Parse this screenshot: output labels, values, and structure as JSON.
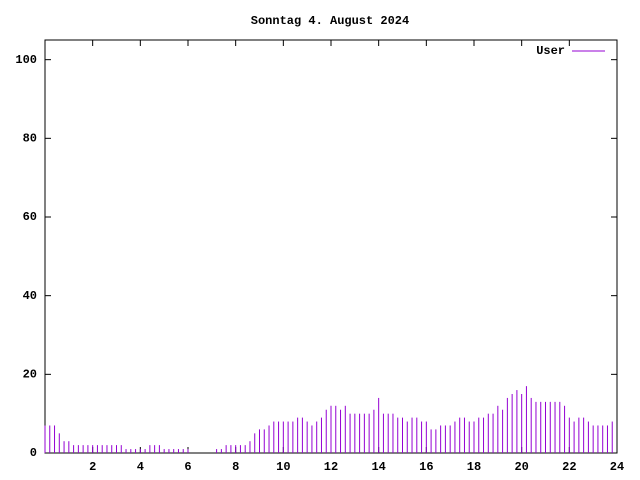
{
  "chart_data": {
    "type": "impulse",
    "title": "Sonntag 4. August 2024",
    "x": [
      0,
      0.2,
      0.4,
      0.6,
      0.8,
      1,
      1.2,
      1.4,
      1.6,
      1.8,
      2,
      2.2,
      2.4,
      2.6,
      2.8,
      3,
      3.2,
      3.4,
      3.6,
      3.8,
      4,
      4.2,
      4.4,
      4.6,
      4.8,
      5,
      5.2,
      5.4,
      5.6,
      5.8,
      6,
      6.2,
      6.4,
      6.6,
      6.8,
      7,
      7.2,
      7.4,
      7.6,
      7.8,
      8,
      8.2,
      8.4,
      8.6,
      8.8,
      9,
      9.2,
      9.4,
      9.6,
      9.8,
      10,
      10.2,
      10.4,
      10.6,
      10.8,
      11,
      11.2,
      11.4,
      11.6,
      11.8,
      12,
      12.2,
      12.4,
      12.6,
      12.8,
      13,
      13.2,
      13.4,
      13.6,
      13.8,
      14,
      14.2,
      14.4,
      14.6,
      14.8,
      15,
      15.2,
      15.4,
      15.6,
      15.8,
      16,
      16.2,
      16.4,
      16.6,
      16.8,
      17,
      17.2,
      17.4,
      17.6,
      17.8,
      18,
      18.2,
      18.4,
      18.6,
      18.8,
      19,
      19.2,
      19.4,
      19.6,
      19.8,
      20,
      20.2,
      20.4,
      20.6,
      20.8,
      21,
      21.2,
      21.4,
      21.6,
      21.8,
      22,
      22.2,
      22.4,
      22.6,
      22.8,
      23,
      23.2,
      23.4,
      23.6,
      23.8
    ],
    "series": [
      {
        "name": "User",
        "color": "#9400d3",
        "values": [
          7,
          7,
          7,
          5,
          3,
          3,
          2,
          2,
          2,
          2,
          2,
          2,
          2,
          2,
          2,
          2,
          2,
          1,
          1,
          1,
          1,
          1,
          2,
          2,
          2,
          1,
          1,
          1,
          1,
          1,
          1,
          0,
          0,
          0,
          0,
          0,
          1,
          1,
          2,
          2,
          2,
          2,
          2,
          3,
          5,
          6,
          6,
          7,
          8,
          8,
          8,
          8,
          8,
          9,
          9,
          8,
          7,
          8,
          9,
          11,
          12,
          12,
          11,
          12,
          10,
          10,
          10,
          10,
          10,
          11,
          14,
          10,
          10,
          10,
          9,
          9,
          8,
          9,
          9,
          8,
          8,
          6,
          6,
          7,
          7,
          7,
          8,
          9,
          9,
          8,
          8,
          9,
          9,
          10,
          10,
          12,
          11,
          14,
          15,
          16,
          15,
          17,
          14,
          13,
          13,
          13,
          13,
          13,
          13,
          12,
          9,
          8,
          9,
          9,
          8,
          7,
          7,
          7,
          7,
          8
        ]
      }
    ],
    "xlim": [
      0,
      24
    ],
    "xticks": [
      2,
      4,
      6,
      8,
      10,
      12,
      14,
      16,
      18,
      20,
      22,
      24
    ],
    "ylim": [
      0,
      105
    ],
    "yticks": [
      0,
      20,
      40,
      60,
      80,
      100
    ],
    "legend": "top-right"
  }
}
